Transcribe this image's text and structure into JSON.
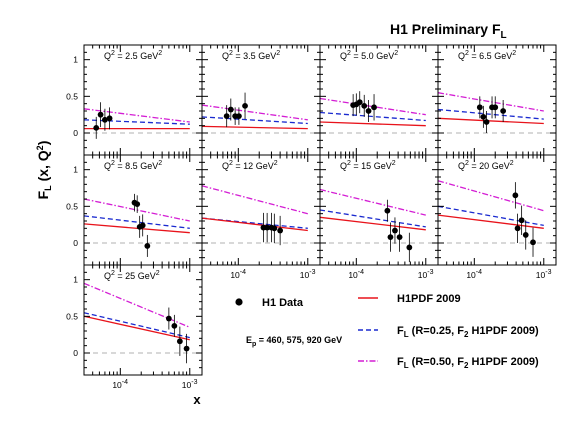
{
  "title": {
    "main": "H1 Preliminary F",
    "sub": "L"
  },
  "chart_data": {
    "type": "scatter",
    "xscale": "log",
    "xlim": [
      3e-05,
      0.0015
    ],
    "ylim": [
      -0.3,
      1.2
    ],
    "ytick_labels": [
      "0",
      "0.5",
      "1"
    ],
    "xtick_labels": [
      {
        "value": 0.0001,
        "base": "10",
        "exp": "-4"
      },
      {
        "value": 0.001,
        "base": "10",
        "exp": "-3"
      }
    ],
    "ylabel": {
      "pre": "F",
      "sub": "L",
      "mid": " (x, Q",
      "sup": "2",
      "post": ")"
    },
    "xlabel": "x",
    "panels": [
      {
        "q2": "2.5",
        "points": [
          [
            4.5e-05,
            0.07,
            0.15
          ],
          [
            5.2e-05,
            0.25,
            0.17
          ],
          [
            6e-05,
            0.18,
            0.15
          ],
          [
            7e-05,
            0.2,
            0.15
          ]
        ],
        "h1pdf": [
          [
            3e-05,
            0.06
          ],
          [
            0.001,
            0.06
          ]
        ],
        "r025": [
          [
            3e-05,
            0.18
          ],
          [
            0.001,
            0.12
          ]
        ],
        "r050": [
          [
            3e-05,
            0.33
          ],
          [
            0.001,
            0.15
          ]
        ]
      },
      {
        "q2": "3.5",
        "points": [
          [
            6.8e-05,
            0.23,
            0.15
          ],
          [
            7.8e-05,
            0.32,
            0.15
          ],
          [
            9e-05,
            0.23,
            0.12
          ],
          [
            0.000102,
            0.23,
            0.12
          ],
          [
            0.000125,
            0.37,
            0.18
          ]
        ],
        "h1pdf": [
          [
            3e-05,
            0.09
          ],
          [
            0.001,
            0.06
          ]
        ],
        "r025": [
          [
            3e-05,
            0.22
          ],
          [
            0.001,
            0.13
          ]
        ],
        "r050": [
          [
            3e-05,
            0.38
          ],
          [
            0.001,
            0.18
          ]
        ]
      },
      {
        "q2": "5.0",
        "points": [
          [
            9e-05,
            0.38,
            0.15
          ],
          [
            0.0001,
            0.39,
            0.15
          ],
          [
            0.000112,
            0.42,
            0.15
          ],
          [
            0.00013,
            0.37,
            0.15
          ],
          [
            0.00015,
            0.3,
            0.15
          ],
          [
            0.00018,
            0.35,
            0.18
          ]
        ],
        "h1pdf": [
          [
            3e-05,
            0.15
          ],
          [
            0.001,
            0.1
          ]
        ],
        "r025": [
          [
            3e-05,
            0.28
          ],
          [
            0.001,
            0.17
          ]
        ],
        "r050": [
          [
            3e-05,
            0.47
          ],
          [
            0.001,
            0.25
          ]
        ]
      },
      {
        "q2": "6.5",
        "points": [
          [
            0.00012,
            0.35,
            0.15
          ],
          [
            0.000135,
            0.22,
            0.15
          ],
          [
            0.00015,
            0.15,
            0.15
          ],
          [
            0.00018,
            0.35,
            0.15
          ],
          [
            0.0002,
            0.35,
            0.15
          ],
          [
            0.00026,
            0.3,
            0.15
          ]
        ],
        "h1pdf": [
          [
            3e-05,
            0.2
          ],
          [
            0.001,
            0.13
          ]
        ],
        "r025": [
          [
            3e-05,
            0.32
          ],
          [
            0.001,
            0.19
          ]
        ],
        "r050": [
          [
            3e-05,
            0.55
          ],
          [
            0.001,
            0.3
          ]
        ]
      },
      {
        "q2": "8.5",
        "points": [
          [
            0.00016,
            0.55,
            0.12
          ],
          [
            0.000175,
            0.53,
            0.12
          ],
          [
            0.00019,
            0.22,
            0.15
          ],
          [
            0.00021,
            0.24,
            0.15
          ],
          [
            0.000245,
            -0.04,
            0.15
          ]
        ],
        "h1pdf": [
          [
            3e-05,
            0.26
          ],
          [
            0.001,
            0.14
          ]
        ],
        "r025": [
          [
            3e-05,
            0.37
          ],
          [
            0.001,
            0.2
          ]
        ],
        "r050": [
          [
            3e-05,
            0.6
          ],
          [
            0.001,
            0.3
          ]
        ]
      },
      {
        "q2": "12",
        "points": [
          [
            0.00023,
            0.21,
            0.2
          ],
          [
            0.00026,
            0.21,
            0.2
          ],
          [
            0.0003,
            0.21,
            0.2
          ],
          [
            0.00033,
            0.2,
            0.2
          ],
          [
            0.0004,
            0.17,
            0.2
          ]
        ],
        "h1pdf": [
          [
            3e-05,
            0.34
          ],
          [
            0.001,
            0.17
          ]
        ],
        "r025": [
          [
            3e-05,
            0.34
          ],
          [
            0.001,
            0.2
          ]
        ],
        "r050": [
          [
            3e-05,
            0.78
          ],
          [
            0.001,
            0.4
          ]
        ]
      },
      {
        "q2": "15",
        "points": [
          [
            0.00028,
            0.44,
            0.15
          ],
          [
            0.00031,
            0.08,
            0.2
          ],
          [
            0.00036,
            0.17,
            0.18
          ],
          [
            0.00042,
            0.08,
            0.2
          ],
          [
            0.00058,
            -0.06,
            0.2
          ]
        ],
        "h1pdf": [
          [
            3e-05,
            0.35
          ],
          [
            0.001,
            0.18
          ]
        ],
        "r025": [
          [
            3e-05,
            0.45
          ],
          [
            0.001,
            0.22
          ]
        ],
        "r050": [
          [
            3e-05,
            0.73
          ],
          [
            0.001,
            0.38
          ]
        ]
      },
      {
        "q2": "20",
        "points": [
          [
            0.00039,
            0.65,
            0.18
          ],
          [
            0.00042,
            0.2,
            0.2
          ],
          [
            0.00048,
            0.31,
            0.2
          ],
          [
            0.00055,
            0.11,
            0.2
          ],
          [
            0.0007,
            0.01,
            0.2
          ]
        ],
        "h1pdf": [
          [
            3e-05,
            0.38
          ],
          [
            0.001,
            0.2
          ]
        ],
        "r025": [
          [
            3e-05,
            0.5
          ],
          [
            0.001,
            0.24
          ]
        ],
        "r050": [
          [
            3e-05,
            0.85
          ],
          [
            0.001,
            0.44
          ]
        ]
      },
      {
        "q2": "25",
        "points": [
          [
            0.0005,
            0.47,
            0.15
          ],
          [
            0.0006,
            0.37,
            0.15
          ],
          [
            0.00072,
            0.16,
            0.2
          ],
          [
            0.0009,
            0.06,
            0.2
          ]
        ],
        "h1pdf": [
          [
            3e-05,
            0.5
          ],
          [
            0.001,
            0.18
          ]
        ],
        "r025": [
          [
            3e-05,
            0.55
          ],
          [
            0.001,
            0.21
          ]
        ],
        "r050": [
          [
            3e-05,
            0.95
          ],
          [
            0.001,
            0.35
          ]
        ]
      }
    ],
    "legend": {
      "data": "H1 Data",
      "ep": {
        "pre": "E",
        "sub": "p",
        "post": " = 460, 575, 920 GeV"
      },
      "h1pdf": "H1PDF 2009",
      "r025": {
        "pre": "F",
        "sub": "L",
        "mid": " (R=0.25, F",
        "sub2": "2",
        "post": " H1PDF 2009)"
      },
      "r050": {
        "pre": "F",
        "sub": "L",
        "mid": " (R=0.50, F",
        "sub2": "2",
        "post": " H1PDF 2009)"
      }
    },
    "colors": {
      "h1pdf": "#e8131b",
      "r025": "#1a2acf",
      "r050": "#d41ed4",
      "zero": "#b0b0b0",
      "data": "#000000"
    }
  }
}
